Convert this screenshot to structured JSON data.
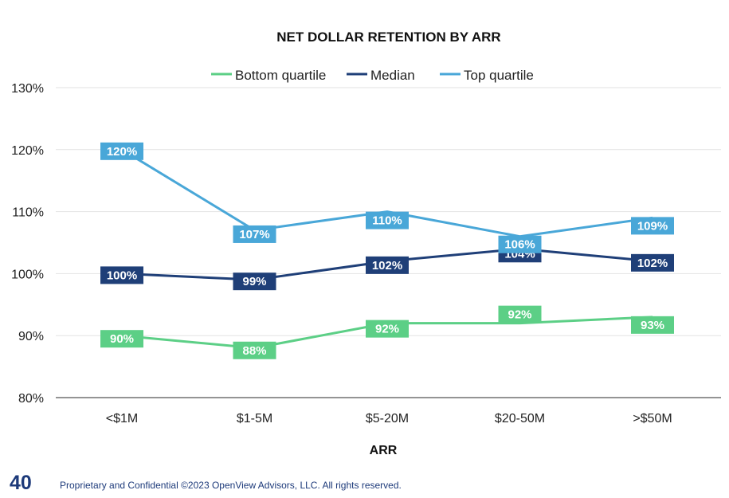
{
  "chart_data": {
    "type": "line",
    "title": "NET DOLLAR RETENTION BY ARR",
    "xlabel": "ARR",
    "ylabel": "",
    "categories": [
      "<$1M",
      "$1-5M",
      "$5-20M",
      "$20-50M",
      ">$50M"
    ],
    "ylim": [
      80,
      130
    ],
    "yticks": [
      80,
      90,
      100,
      110,
      120,
      130
    ],
    "ytick_labels": [
      "80%",
      "90%",
      "100%",
      "110%",
      "120%",
      "130%"
    ],
    "grid": true,
    "legend_position": "top-center",
    "series": [
      {
        "name": "Bottom quartile",
        "color": "#5ccf86",
        "values": [
          90,
          88,
          92,
          92,
          93
        ],
        "labels": [
          "90%",
          "88%",
          "92%",
          "92%",
          "93%"
        ],
        "label_offsets": [
          4,
          3,
          7,
          -11,
          10
        ]
      },
      {
        "name": "Median",
        "color": "#1f3f78",
        "values": [
          100,
          99,
          102,
          104,
          102
        ],
        "labels": [
          "100%",
          "99%",
          "102%",
          "104%",
          "102%"
        ],
        "label_offsets": [
          2,
          2,
          5,
          6,
          2
        ]
      },
      {
        "name": "Top quartile",
        "color": "#49a7d8",
        "values": [
          120,
          107,
          110,
          106,
          109
        ],
        "labels": [
          "120%",
          "107%",
          "110%",
          "106%",
          "109%"
        ],
        "label_offsets": [
          2,
          5,
          11,
          10,
          10
        ]
      }
    ]
  },
  "footer": {
    "page_number": "40",
    "copyright": "Proprietary and Confidential ©2023 OpenView Advisors, LLC. All rights reserved."
  }
}
